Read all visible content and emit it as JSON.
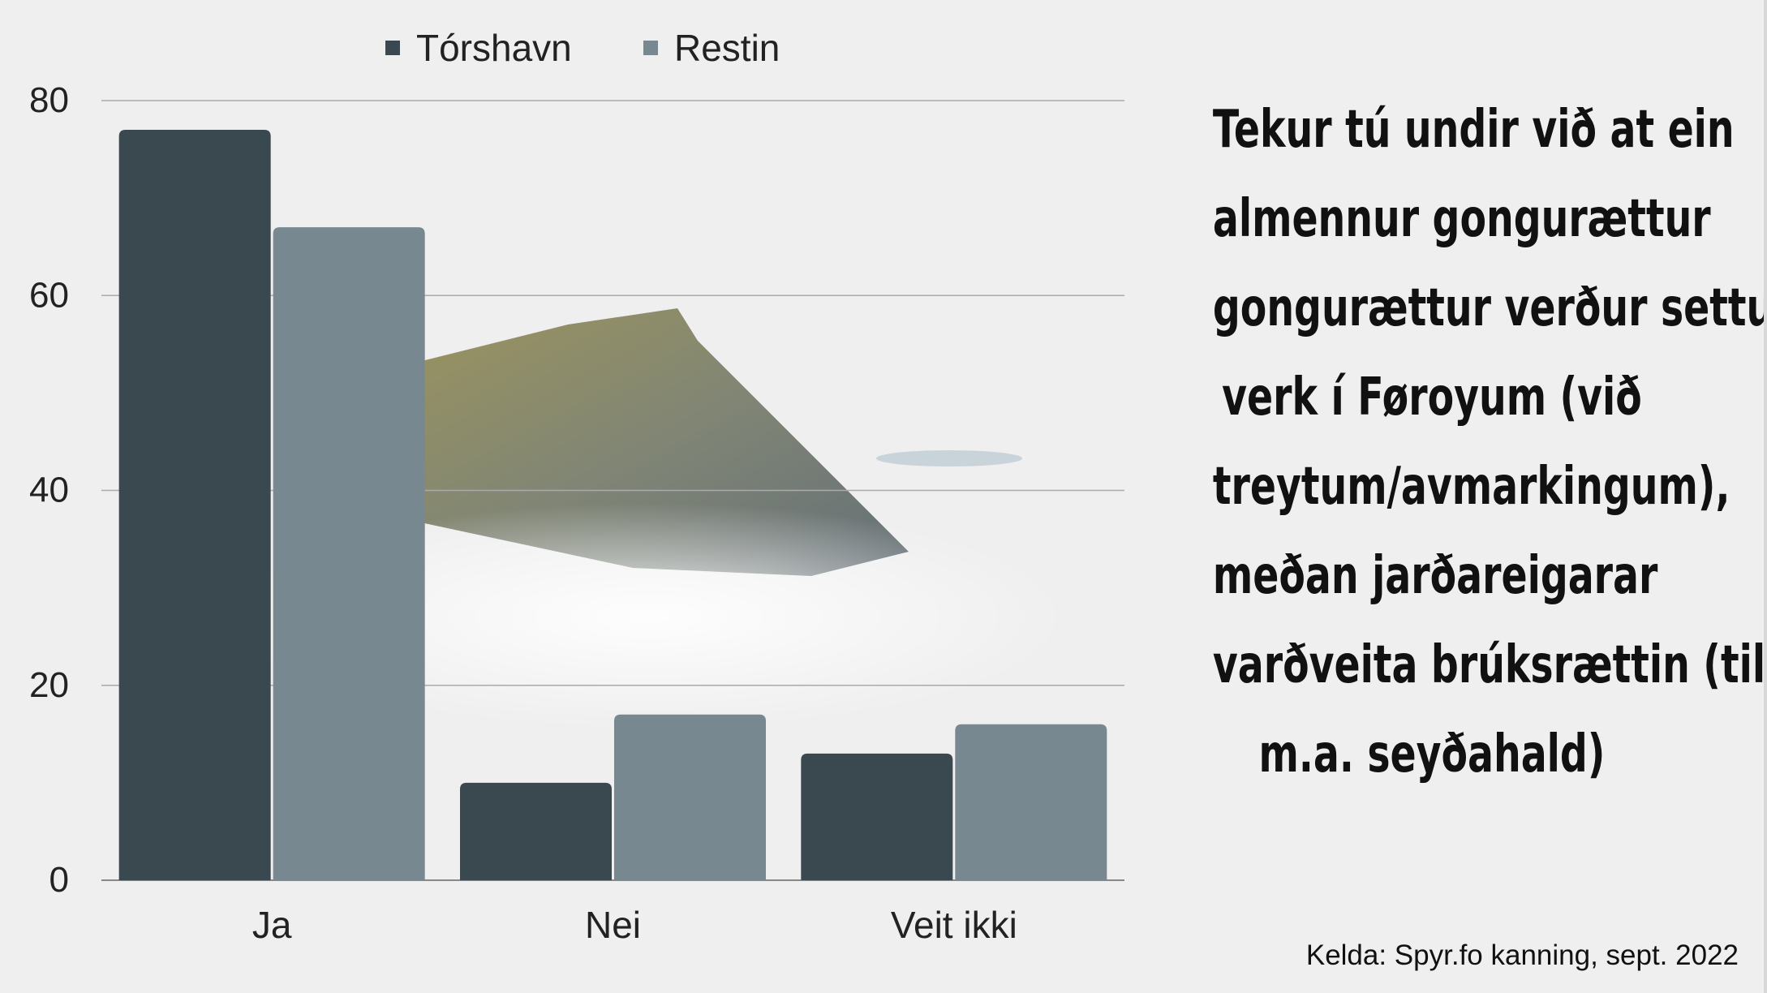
{
  "chart_data": {
    "type": "bar",
    "categories": [
      "Ja",
      "Nei",
      "Veit ikki"
    ],
    "series": [
      {
        "name": "Tórshavn",
        "values": [
          77,
          10,
          13
        ],
        "color": "#3a4850"
      },
      {
        "name": "Restin",
        "values": [
          67,
          17,
          16
        ],
        "color": "#778891"
      }
    ],
    "yticks": [
      0,
      20,
      40,
      60,
      80
    ],
    "ylim": [
      0,
      80
    ],
    "grid": true,
    "legend": "top"
  },
  "title_lines": [
    "Tekur tú undir við at ein",
    "almennur gongurættur",
    "gongurættur verður settur í",
    "verk í Føroyum (við",
    "treytum/avmarkingum),",
    "meðan jarðareigarar",
    "varðveita brúksrættin (til",
    "m.a. seyðahald)"
  ],
  "source": "Kelda: Spyr.fo kanning, sept. 2022"
}
